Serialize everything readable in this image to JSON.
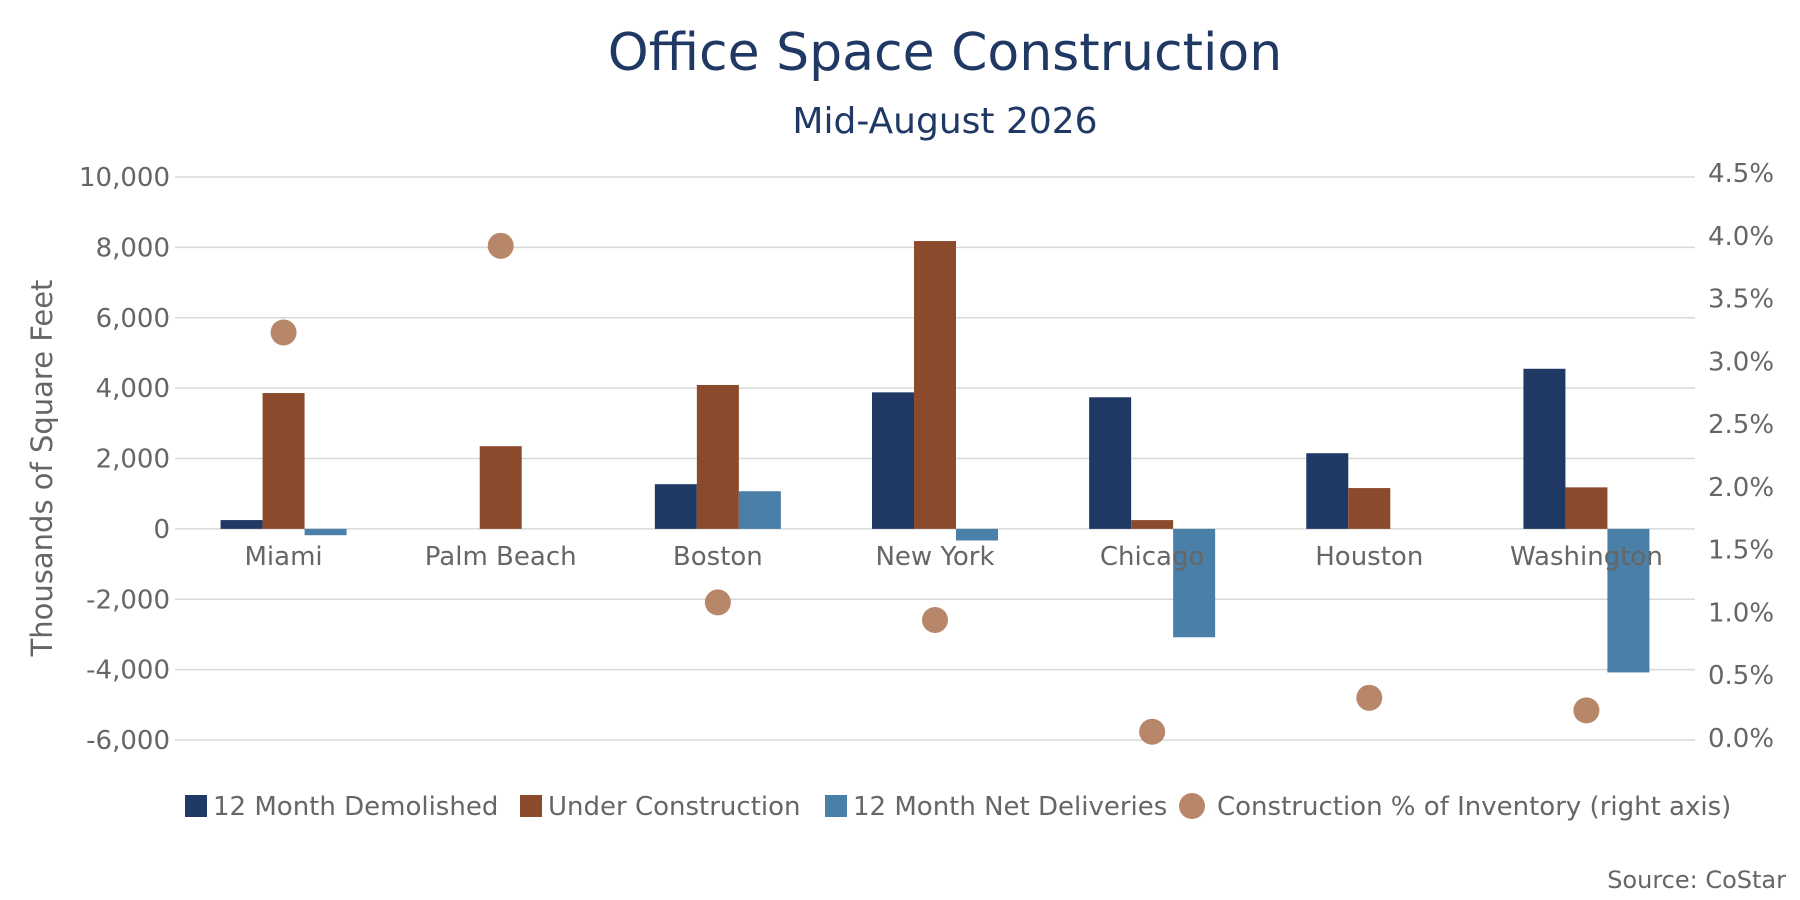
{
  "chart_data": {
    "type": "bar",
    "title": "Office Space Construction",
    "subtitle": "Mid-August 2026",
    "ylabel": "Thousands of Square Feet",
    "ylim": [
      -6000,
      10000
    ],
    "yticks": [
      10000,
      8000,
      6000,
      4000,
      2000,
      0,
      -2000,
      -4000,
      -6000
    ],
    "ytick_labels": [
      "10,000",
      "8,000",
      "6,000",
      "4,000",
      "2,000",
      "0",
      "-2,000",
      "-4,000",
      "-6,000"
    ],
    "y2lim": [
      0,
      4.5
    ],
    "y2ticks": [
      4.5,
      4.0,
      3.5,
      3.0,
      2.5,
      2.0,
      1.5,
      1.0,
      0.5,
      0.0
    ],
    "y2tick_labels": [
      "4.5%",
      "4.0%",
      "3.5%",
      "3.0%",
      "2.5%",
      "2.0%",
      "1.5%",
      "1.0%",
      "0.5%",
      "0.0%"
    ],
    "grid": true,
    "legend_position": "bottom",
    "categories": [
      "Miami",
      "Palm Beach",
      "Boston",
      "New York",
      "Chicago",
      "Houston",
      "Washington"
    ],
    "series": [
      {
        "name": "12 Month Demolished",
        "type": "bar",
        "axis": "left",
        "color": "#1f3864",
        "values": [
          250,
          0,
          1270,
          3880,
          3740,
          2150,
          4550
        ]
      },
      {
        "name": "Under Construction",
        "type": "bar",
        "axis": "left",
        "color": "#8b4a2b",
        "values": [
          3860,
          2350,
          4090,
          8180,
          250,
          1160,
          1180
        ]
      },
      {
        "name": "12 Month Net Deliveries",
        "type": "bar",
        "axis": "left",
        "color": "#4a7fa8",
        "values": [
          -180,
          0,
          1070,
          -330,
          -3080,
          0,
          -4080
        ]
      },
      {
        "name": "Construction % of Inventory (right axis)",
        "type": "scatter",
        "axis": "right",
        "color": "#b8876a",
        "values": [
          3.23,
          3.92,
          1.08,
          0.94,
          0.05,
          0.32,
          0.22
        ]
      }
    ],
    "source": "Source: CoStar"
  }
}
